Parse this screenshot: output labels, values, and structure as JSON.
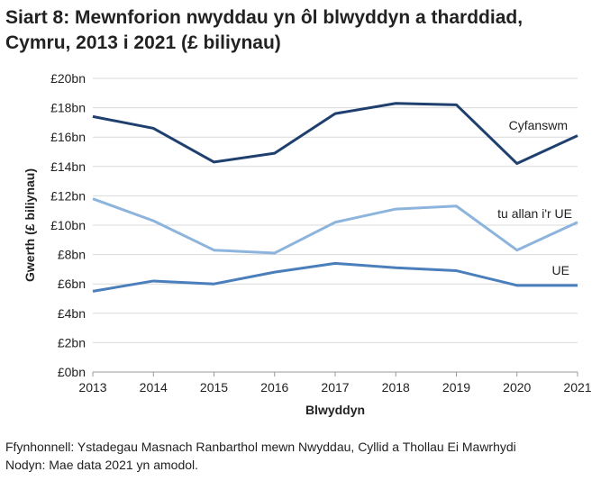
{
  "chart_data": {
    "type": "line",
    "title_line1": "Siart 8: Mewnforion nwyddau yn ôl blwyddyn a tharddiad,",
    "title_line2": "Cymru, 2013 i 2021 (£ biliynau)",
    "xlabel": "Blwyddyn",
    "ylabel": "Gwerth (£ biliynau)",
    "ylim": [
      0,
      20
    ],
    "yticks": [
      0,
      2,
      4,
      6,
      8,
      10,
      12,
      14,
      16,
      18,
      20
    ],
    "ytick_labels": [
      "£0bn",
      "£2bn",
      "£4bn",
      "£6bn",
      "£8bn",
      "£10bn",
      "£12bn",
      "£14bn",
      "£16bn",
      "£18bn",
      "£20bn"
    ],
    "x": [
      "2013",
      "2014",
      "2015",
      "2016",
      "2017",
      "2018",
      "2019",
      "2020",
      "2021"
    ],
    "grid": true,
    "series": [
      {
        "name": "Cyfanswm",
        "color": "#1f3f6e",
        "values": [
          17.4,
          16.6,
          14.3,
          14.9,
          17.6,
          18.3,
          18.2,
          14.2,
          16.1
        ]
      },
      {
        "name": "tu allan i'r UE",
        "color": "#8db4dc",
        "values": [
          11.8,
          10.3,
          8.3,
          8.1,
          10.2,
          11.1,
          11.3,
          8.3,
          10.2
        ]
      },
      {
        "name": "UE",
        "color": "#4a7fbc",
        "values": [
          5.5,
          6.2,
          6.0,
          6.8,
          7.4,
          7.1,
          6.9,
          5.9,
          5.9
        ]
      }
    ]
  },
  "footer": {
    "source": "Ffynhonnell: Ystadegau Masnach Ranbarthol mewn Nwyddau, Cyllid a Thollau Ei Mawrhydi",
    "note": "Nodyn: Mae data 2021 yn amodol."
  }
}
